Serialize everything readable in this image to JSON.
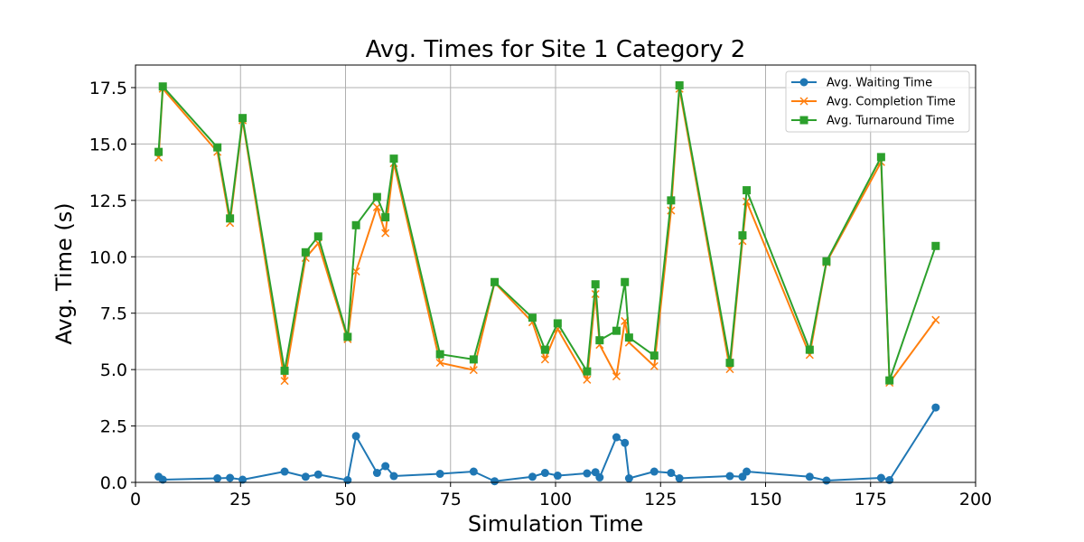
{
  "chart_data": {
    "type": "line",
    "title": "Avg. Times for Site 1 Category 2",
    "xlabel": "Simulation Time",
    "ylabel": "Avg. Time (s)",
    "xlim": [
      0,
      200
    ],
    "ylim": [
      0,
      18.5
    ],
    "xticks": [
      0,
      25,
      50,
      75,
      100,
      125,
      150,
      175,
      200
    ],
    "xtick_labels": [
      "0",
      "25",
      "50",
      "75",
      "100",
      "125",
      "150",
      "175",
      "200"
    ],
    "yticks": [
      0,
      2.5,
      5,
      7.5,
      10,
      12.5,
      15,
      17.5
    ],
    "ytick_labels": [
      "0.0",
      "2.5",
      "5.0",
      "7.5",
      "10.0",
      "12.5",
      "15.0",
      "17.5"
    ],
    "grid": true,
    "legend_position": "top-right",
    "x": [
      5.5,
      6.5,
      19.5,
      22.5,
      25.5,
      35.5,
      40.5,
      43.5,
      50.5,
      52.5,
      57.5,
      59.5,
      61.5,
      72.5,
      80.5,
      85.5,
      94.5,
      97.5,
      100.5,
      107.5,
      109.5,
      110.5,
      114.5,
      116.5,
      117.5,
      123.5,
      127.5,
      129.5,
      141.5,
      144.5,
      145.5,
      160.5,
      164.5,
      177.5,
      179.5,
      190.5
    ],
    "series": [
      {
        "name": "Avg. Waiting Time",
        "color": "#1f77b4",
        "marker": "circle",
        "values": [
          0.25,
          0.12,
          0.18,
          0.2,
          0.12,
          0.48,
          0.25,
          0.35,
          0.1,
          2.05,
          0.42,
          0.72,
          0.28,
          0.38,
          0.48,
          0.05,
          0.25,
          0.42,
          0.3,
          0.4,
          0.45,
          0.22,
          2.0,
          1.75,
          0.18,
          0.48,
          0.42,
          0.18,
          0.28,
          0.25,
          0.48,
          0.25,
          0.08,
          0.2,
          0.1,
          3.32
        ]
      },
      {
        "name": "Avg. Completion Time",
        "color": "#ff7f0e",
        "marker": "x",
        "values": [
          14.4,
          17.45,
          14.65,
          11.5,
          16.05,
          4.5,
          9.95,
          10.6,
          6.35,
          9.35,
          12.2,
          11.05,
          14.15,
          5.3,
          4.98,
          8.85,
          7.1,
          5.45,
          6.8,
          4.55,
          8.35,
          6.1,
          4.7,
          7.15,
          6.2,
          5.15,
          12.05,
          17.45,
          5.02,
          10.7,
          12.45,
          5.65,
          9.75,
          14.2,
          4.42,
          7.2
        ]
      },
      {
        "name": "Avg. Turnaround Time",
        "color": "#2ca02c",
        "marker": "square",
        "values": [
          14.65,
          17.55,
          14.85,
          11.7,
          16.15,
          4.95,
          10.2,
          10.9,
          6.45,
          11.4,
          12.65,
          11.75,
          14.35,
          5.68,
          5.45,
          8.88,
          7.3,
          5.88,
          7.05,
          4.92,
          8.78,
          6.3,
          6.72,
          8.88,
          6.42,
          5.62,
          12.5,
          17.6,
          5.3,
          10.95,
          12.95,
          5.88,
          9.8,
          14.42,
          4.52,
          10.48
        ]
      }
    ]
  }
}
